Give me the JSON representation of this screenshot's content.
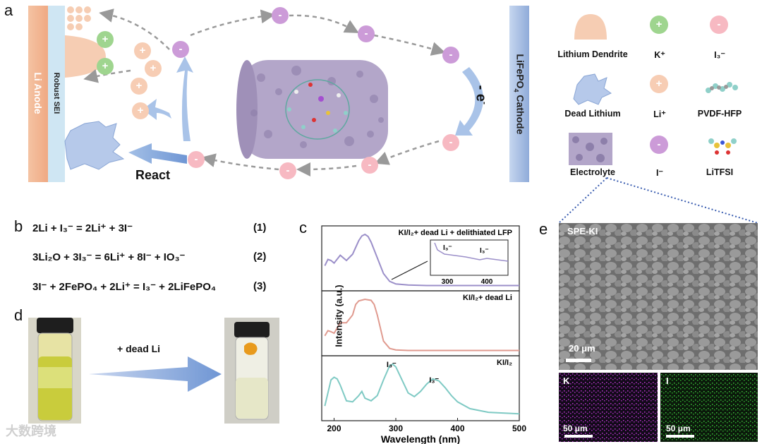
{
  "panels": {
    "a": "a",
    "b": "b",
    "c": "c",
    "d": "d",
    "e": "e"
  },
  "panel_a": {
    "anode_label": "Li  Anode",
    "sei_label": "Robust SEI",
    "cathode_label": "LiFePO",
    "cathode_sub": "4",
    "cathode_label2": " Cathode",
    "electron_label": "- e",
    "electron_sup": "-",
    "react_label": "React",
    "minus": "-",
    "plus": "+"
  },
  "legend": {
    "items": [
      {
        "label": "Lithium Dendrite"
      },
      {
        "label": "K⁺"
      },
      {
        "label": "I₃⁻"
      },
      {
        "label": "Dead Lithium"
      },
      {
        "label": "Li⁺"
      },
      {
        "label": "PVDF-HFP"
      },
      {
        "label": "Electrolyte"
      },
      {
        "label": "I⁻"
      },
      {
        "label": "LiTFSI"
      }
    ]
  },
  "equations": [
    {
      "text": "2Li  +  I₃⁻ = 2Li⁺  +  3I⁻",
      "num": "(1)"
    },
    {
      "text": "3Li₂O  +  3I₃⁻ = 6Li⁺  +  8I⁻  +  IO₃⁻",
      "num": "(2)"
    },
    {
      "text": "3I⁻  +  2FePO₄  +  2Li⁺ = I₃⁻  +  2LiFePO₄",
      "num": "(3)"
    }
  ],
  "panel_d": {
    "arrow_label": "+ dead Li"
  },
  "watermark": "大数跨境",
  "chart_data": {
    "type": "line",
    "xlabel": "Wavelength (nm)",
    "ylabel": "Intensity (a.u.)",
    "xlim": [
      180,
      500
    ],
    "xticks": [
      200,
      300,
      400,
      500
    ],
    "series": [
      {
        "name": "KI/I₂+ dead Li + delithiated LFP",
        "color": "#9b8fc9",
        "x": [
          185,
          190,
          195,
          200,
          210,
          220,
          230,
          240,
          245,
          250,
          255,
          260,
          270,
          280,
          290,
          300,
          320,
          350,
          400,
          450,
          500
        ],
        "y": [
          0.4,
          0.52,
          0.5,
          0.45,
          0.6,
          0.5,
          0.62,
          0.88,
          0.97,
          1.0,
          0.96,
          0.85,
          0.55,
          0.25,
          0.1,
          0.05,
          0.03,
          0.02,
          0.02,
          0.02,
          0.02
        ]
      },
      {
        "name": "KI/I₂+ dead Li",
        "color": "#e09a8f",
        "x": [
          185,
          190,
          195,
          200,
          210,
          220,
          230,
          235,
          240,
          250,
          260,
          265,
          270,
          280,
          290,
          300,
          320,
          350,
          400,
          450,
          500
        ],
        "y": [
          0.3,
          0.4,
          0.38,
          0.35,
          0.55,
          0.55,
          0.7,
          0.9,
          0.97,
          1.0,
          0.98,
          0.9,
          0.7,
          0.2,
          0.06,
          0.03,
          0.02,
          0.02,
          0.02,
          0.02,
          0.02
        ]
      },
      {
        "name": "KI/I₂",
        "color": "#7fcac4",
        "x": [
          185,
          190,
          195,
          200,
          205,
          210,
          220,
          230,
          240,
          245,
          250,
          260,
          270,
          280,
          290,
          295,
          300,
          310,
          320,
          330,
          340,
          350,
          360,
          370,
          380,
          390,
          400,
          420,
          450,
          500
        ],
        "y": [
          0.2,
          0.45,
          0.7,
          0.75,
          0.72,
          0.6,
          0.3,
          0.28,
          0.4,
          0.48,
          0.35,
          0.3,
          0.4,
          0.7,
          0.97,
          1.0,
          0.95,
          0.7,
          0.45,
          0.38,
          0.48,
          0.62,
          0.72,
          0.68,
          0.55,
          0.4,
          0.28,
          0.15,
          0.08,
          0.05
        ]
      }
    ],
    "annotations": [
      "I₃⁻",
      "I₃⁻",
      "I₃⁻",
      "I₃⁻"
    ],
    "inset": {
      "xticks": [
        300,
        400
      ]
    }
  },
  "sem": {
    "title": "SPE-KI",
    "scale_main": "20 μm",
    "k_label": "K",
    "i_label": "I",
    "scale_k": "50 μm",
    "scale_i": "50 μm"
  }
}
